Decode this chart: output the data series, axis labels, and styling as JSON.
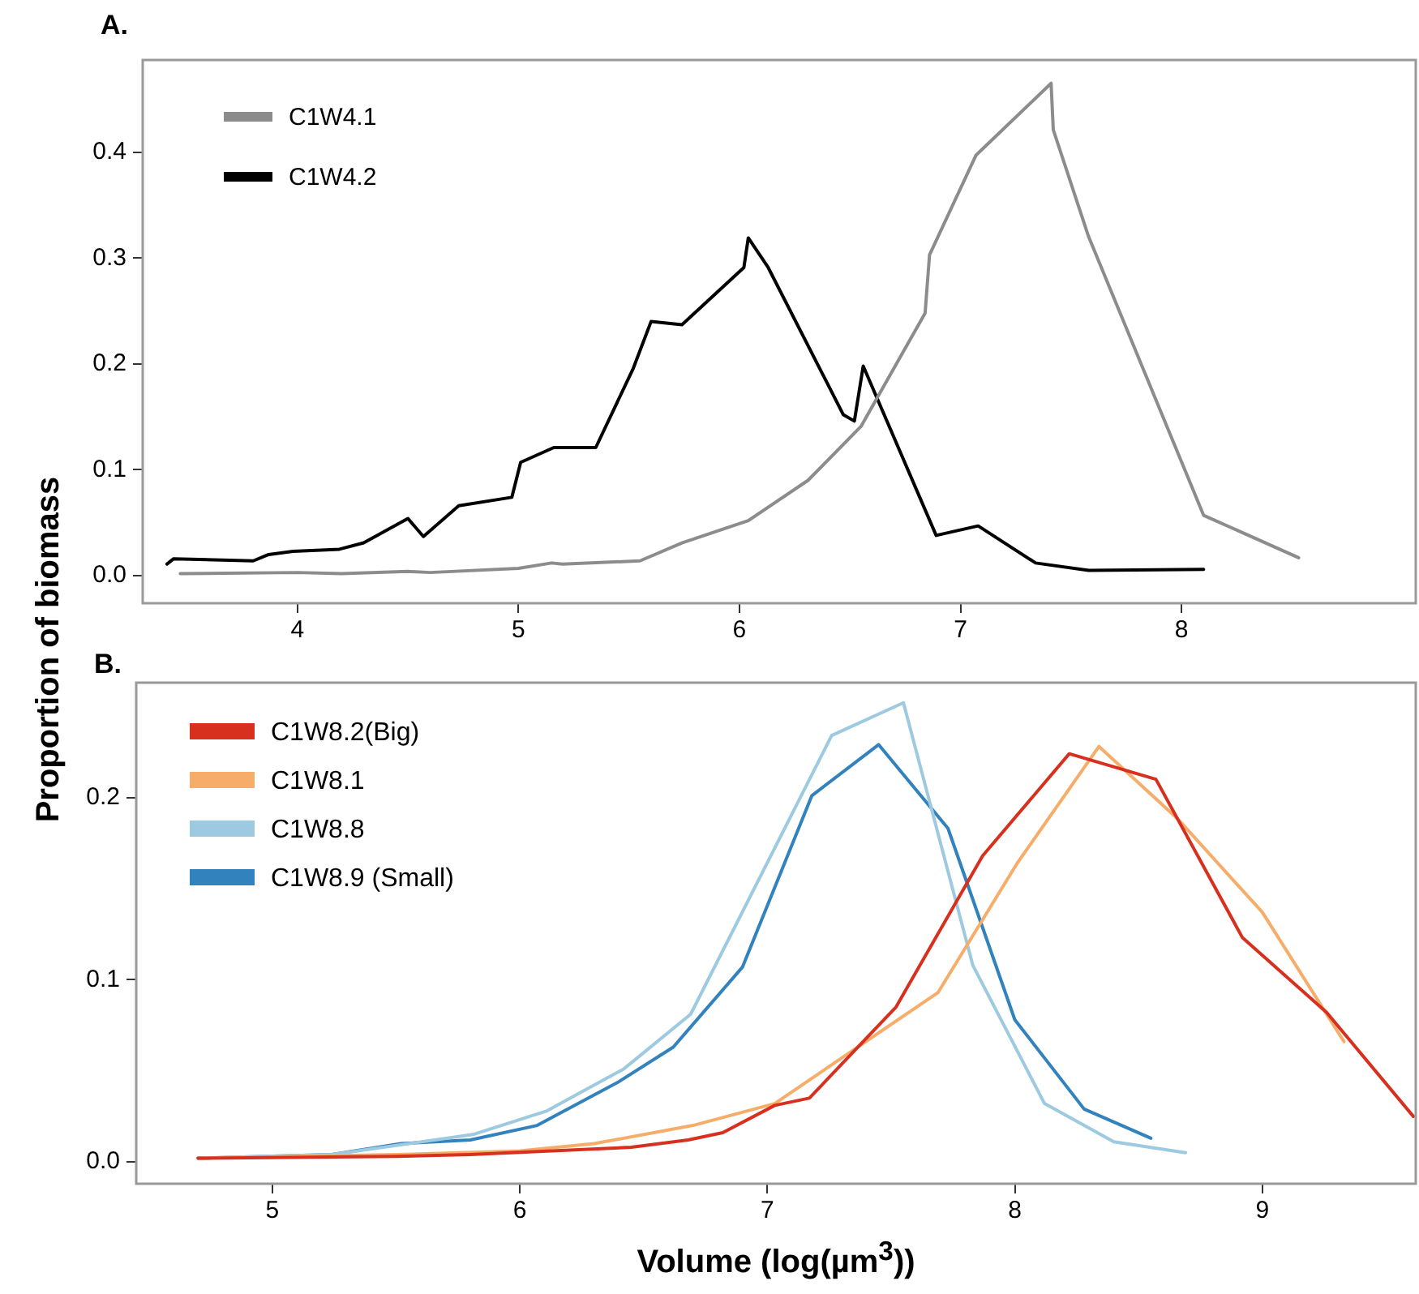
{
  "chart_data": [
    {
      "type": "line",
      "title": "A.",
      "xlim": [
        3.3,
        9.06
      ],
      "xticks": [
        4,
        5,
        6,
        7,
        8
      ],
      "ylim": [
        -0.026,
        0.487
      ],
      "yticks": [
        {
          "value": 0,
          "label": "0.0"
        },
        {
          "value": 0.1,
          "label": "0.1"
        },
        {
          "value": 0.2,
          "label": "0.2"
        },
        {
          "value": 0.3,
          "label": "0.3"
        },
        {
          "value": 0.4,
          "label": "0.4"
        }
      ],
      "grid": false,
      "legend": "top left",
      "marker": "none",
      "line_style": "solid",
      "series": [
        {
          "name": "C1W4.1",
          "color": "#8c8c8c",
          "x": [
            3.47,
            4.0,
            4.2,
            4.5,
            4.6,
            5.0,
            5.15,
            5.2,
            5.55,
            5.74,
            6.04,
            6.31,
            6.55,
            6.84,
            6.86,
            7.07,
            7.41,
            7.42,
            7.58,
            8.1,
            8.53
          ],
          "values": [
            0.002,
            0.003,
            0.002,
            0.004,
            0.003,
            0.007,
            0.012,
            0.011,
            0.014,
            0.031,
            0.052,
            0.09,
            0.141,
            0.248,
            0.303,
            0.397,
            0.465,
            0.421,
            0.32,
            0.057,
            0.017
          ]
        },
        {
          "name": "C1W4.2",
          "color": "#000000",
          "x": [
            3.41,
            3.44,
            3.8,
            3.87,
            3.98,
            4.19,
            4.3,
            4.5,
            4.57,
            4.73,
            4.97,
            5.01,
            5.16,
            5.35,
            5.52,
            5.6,
            5.74,
            6.02,
            6.04,
            6.13,
            6.47,
            6.52,
            6.56,
            6.89,
            7.08,
            7.34,
            7.58,
            8.1
          ],
          "values": [
            0.011,
            0.016,
            0.014,
            0.02,
            0.023,
            0.025,
            0.031,
            0.054,
            0.037,
            0.066,
            0.074,
            0.107,
            0.121,
            0.121,
            0.196,
            0.24,
            0.237,
            0.291,
            0.319,
            0.291,
            0.152,
            0.146,
            0.198,
            0.038,
            0.047,
            0.012,
            0.005,
            0.006
          ]
        }
      ]
    },
    {
      "type": "line",
      "title": "B.",
      "xlabel": "Volume (log(µm$^{3}$))",
      "ylabel": "Proportion of biomass",
      "xlim": [
        4.45,
        9.62
      ],
      "xticks": [
        5,
        6,
        7,
        8,
        9
      ],
      "ylim": [
        -0.012,
        0.263
      ],
      "yticks": [
        {
          "value": 0,
          "label": "0.0"
        },
        {
          "value": 0.1,
          "label": "0.1"
        },
        {
          "value": 0.2,
          "label": "0.2"
        }
      ],
      "grid": false,
      "legend": "top left",
      "marker": "none",
      "line_style": "solid",
      "series": [
        {
          "name": "C1W8.2(Big)",
          "color": "#d7301f",
          "x": [
            4.7,
            5.5,
            5.8,
            6.45,
            6.68,
            6.82,
            7.03,
            7.17,
            7.52,
            7.87,
            8.22,
            8.57,
            8.92,
            9.26,
            9.61
          ],
          "values": [
            0.002,
            0.003,
            0.004,
            0.008,
            0.012,
            0.016,
            0.031,
            0.035,
            0.085,
            0.168,
            0.224,
            0.21,
            0.123,
            0.082,
            0.025
          ]
        },
        {
          "name": "C1W8.1",
          "color": "#f7ad6a",
          "x": [
            4.7,
            5.5,
            6.0,
            6.3,
            6.7,
            7.03,
            7.69,
            8.01,
            8.34,
            8.66,
            9.0,
            9.33
          ],
          "values": [
            0.002,
            0.004,
            0.006,
            0.01,
            0.02,
            0.032,
            0.093,
            0.164,
            0.228,
            0.188,
            0.137,
            0.066
          ]
        },
        {
          "name": "C1W8.8",
          "color": "#9ecae1",
          "x": [
            4.7,
            5.24,
            5.81,
            6.11,
            6.42,
            6.69,
            7.26,
            7.55,
            7.83,
            8.12,
            8.4,
            8.69
          ],
          "values": [
            0.002,
            0.004,
            0.015,
            0.028,
            0.051,
            0.081,
            0.234,
            0.252,
            0.108,
            0.032,
            0.011,
            0.005
          ]
        },
        {
          "name": "C1W8.9 (Small)",
          "color": "#3182bd",
          "x": [
            4.7,
            5.24,
            5.52,
            5.8,
            6.07,
            6.4,
            6.62,
            6.9,
            7.18,
            7.45,
            7.73,
            8.0,
            8.28,
            8.55
          ],
          "values": [
            0.002,
            0.004,
            0.01,
            0.012,
            0.02,
            0.044,
            0.063,
            0.107,
            0.201,
            0.229,
            0.183,
            0.078,
            0.029,
            0.013
          ]
        }
      ]
    }
  ]
}
